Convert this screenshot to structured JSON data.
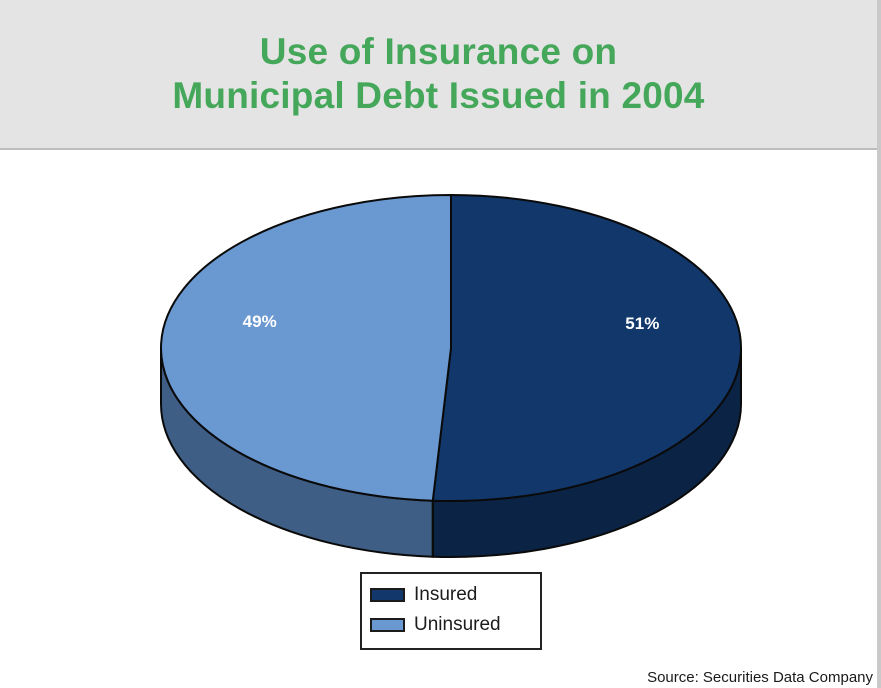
{
  "title_lines": [
    "Use of Insurance on",
    "Municipal Debt Issued in 2004"
  ],
  "source": "Source: Securities Data Company",
  "colors": {
    "insured_top": "#12376b",
    "insured_side": "#0b2445",
    "uninsured_top": "#6a98d1",
    "uninsured_side": "#3e5e85",
    "title": "#44a75a",
    "band": "#e4e4e4"
  },
  "chart_data": {
    "type": "pie",
    "title": "Use of Insurance on Municipal Debt Issued in 2004",
    "categories": [
      "Insured",
      "Uninsured"
    ],
    "values": [
      51,
      49
    ],
    "data_labels": [
      "51%",
      "49%"
    ],
    "legend_placement": "bottom-center",
    "style": "3d"
  },
  "legend": [
    {
      "label": "Insured"
    },
    {
      "label": "Uninsured"
    }
  ]
}
